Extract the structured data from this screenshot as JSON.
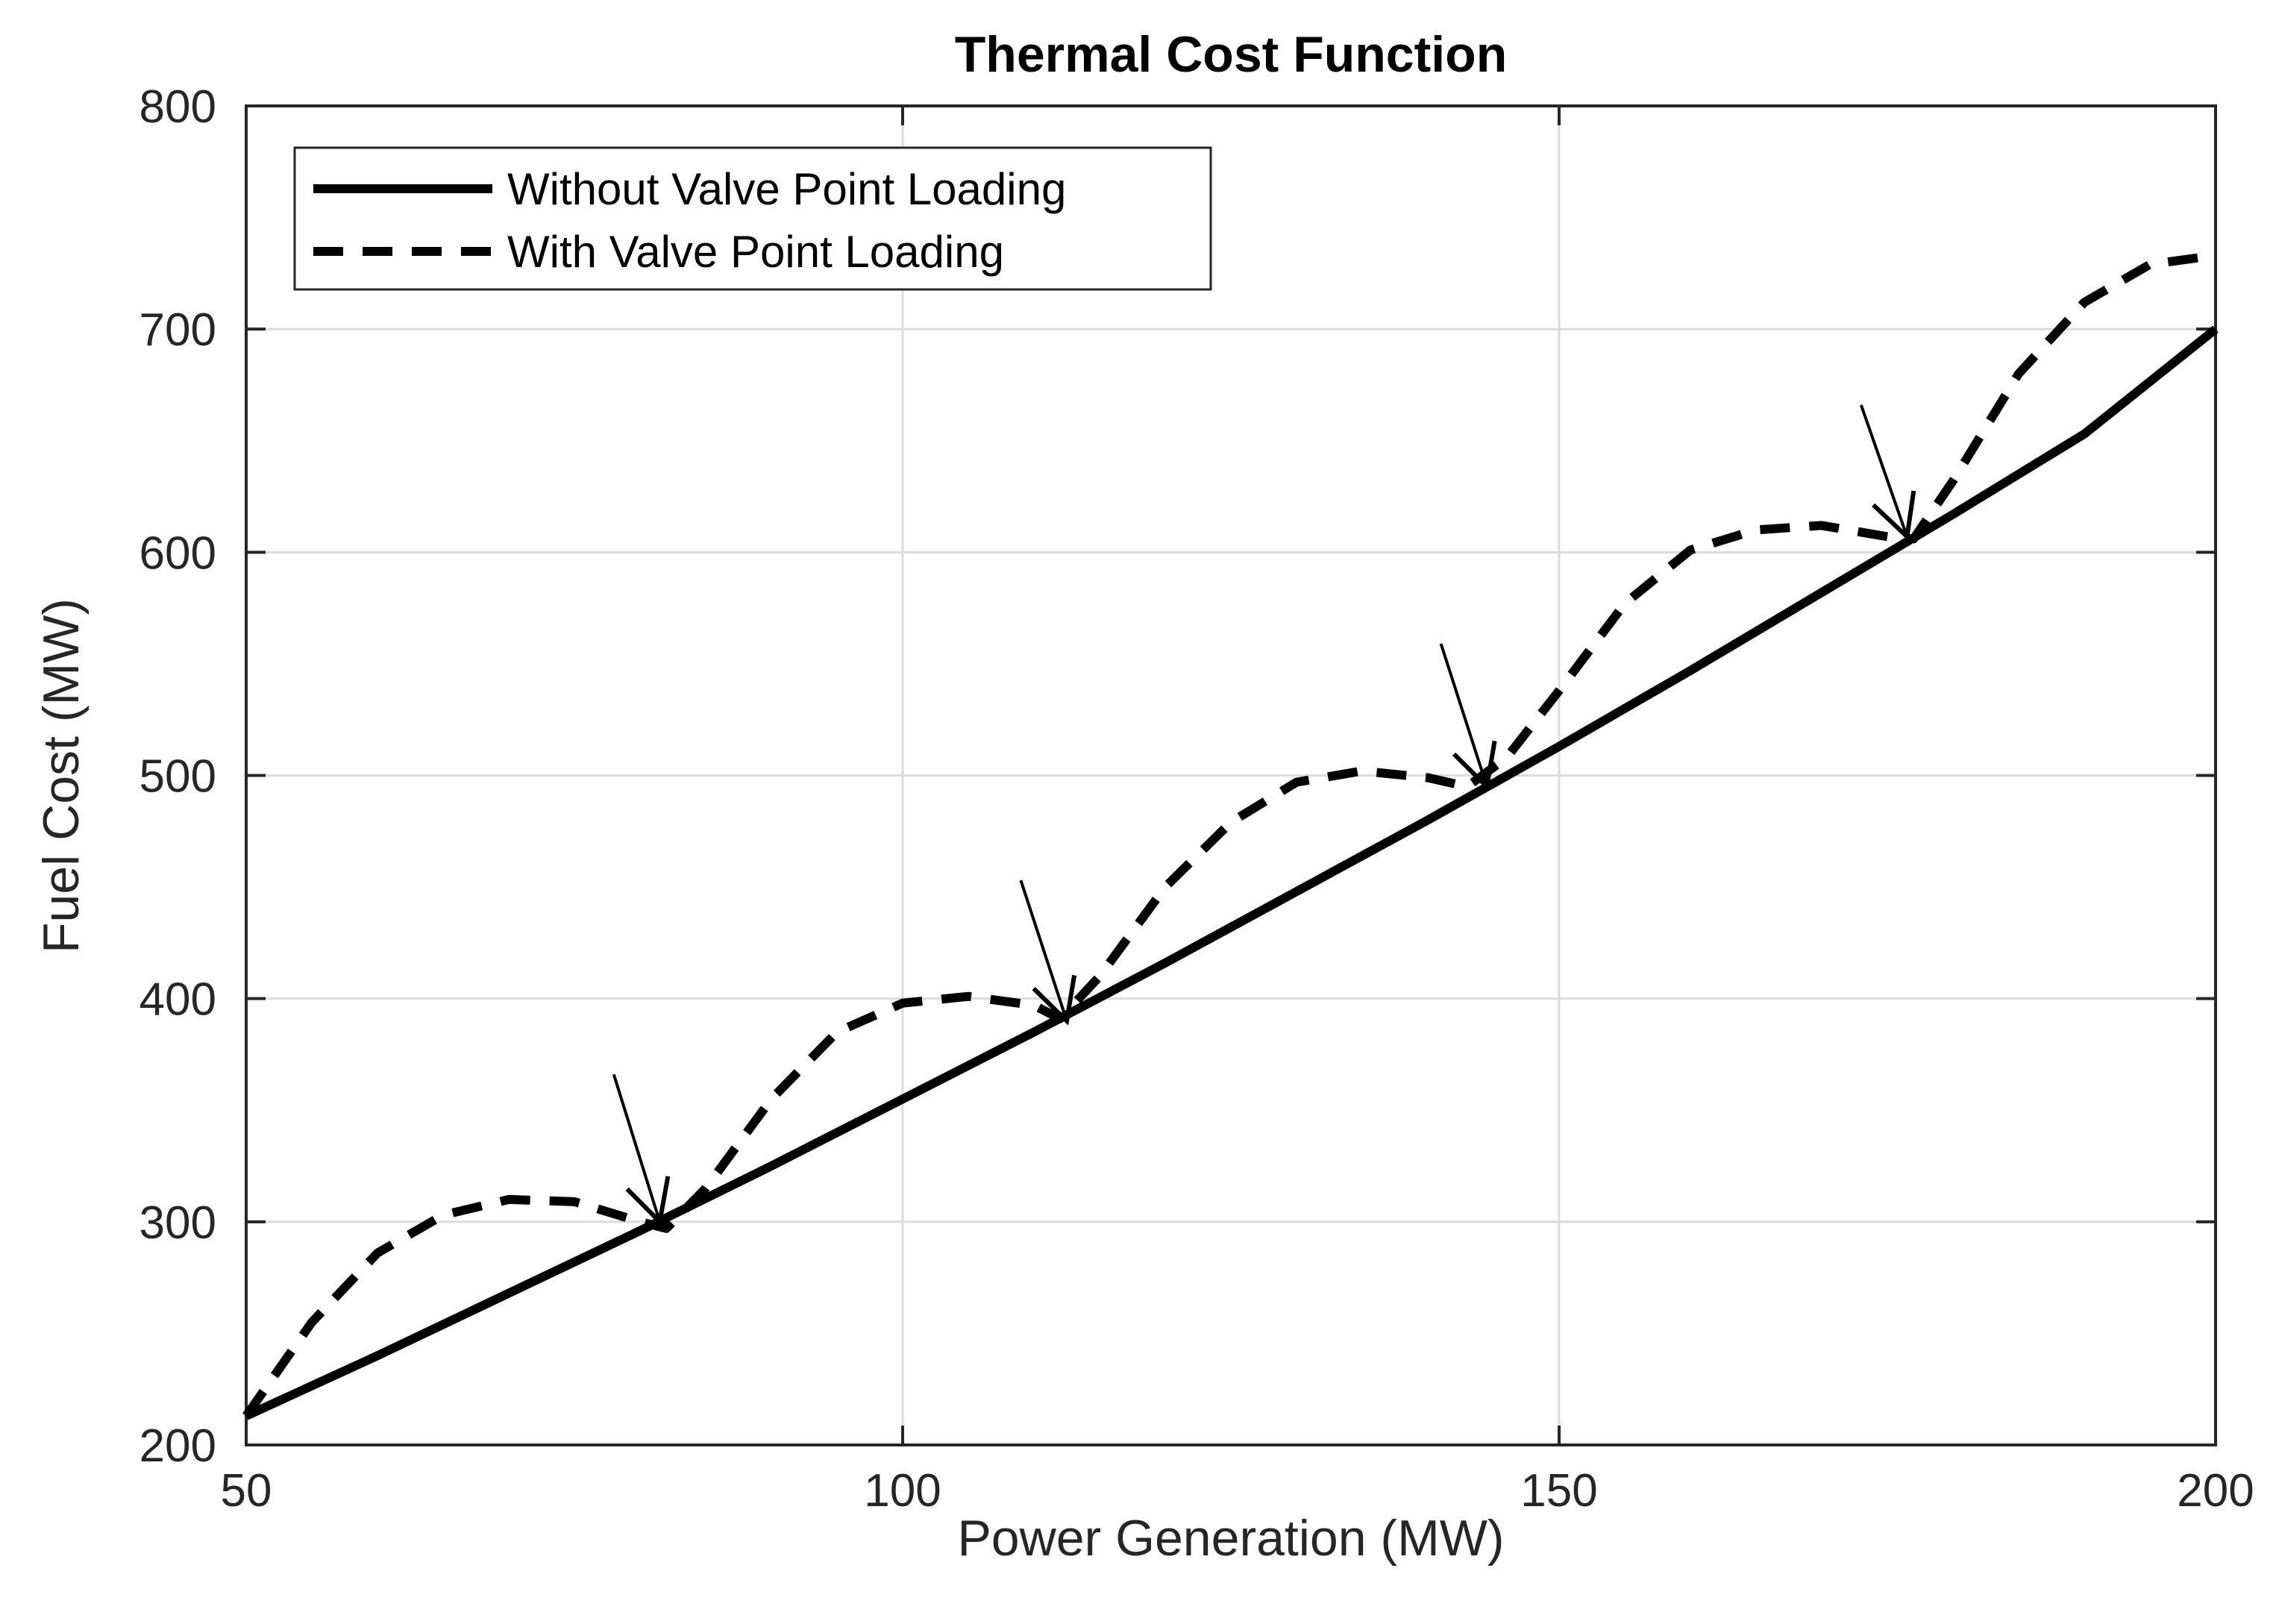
{
  "chart_data": {
    "type": "line",
    "title": "Thermal Cost Function",
    "xlabel": "Power Generation (MW)",
    "ylabel": "Fuel Cost (MW)",
    "xlim": [
      50,
      200
    ],
    "ylim": [
      200,
      800
    ],
    "xticks": [
      50,
      100,
      150,
      200
    ],
    "yticks": [
      200,
      300,
      400,
      500,
      600,
      700,
      800
    ],
    "xtick_labels": [
      "50",
      "100",
      "150",
      "200"
    ],
    "ytick_labels": [
      "200",
      "300",
      "400",
      "500",
      "600",
      "700",
      "800"
    ],
    "grid": true,
    "legend_position": "top-left",
    "series": [
      {
        "name": "Without Valve Point Loading",
        "style": "solid",
        "x": [
          50,
          60,
          70,
          80,
          90,
          100,
          110,
          120,
          130,
          140,
          150,
          160,
          170,
          180,
          190,
          200
        ],
        "y": [
          213,
          240,
          268,
          296,
          325,
          355,
          385,
          416,
          448,
          480,
          513,
          547,
          582,
          617,
          653,
          700
        ]
      },
      {
        "name": "With Valve Point Loading",
        "style": "dashed",
        "x": [
          50,
          55,
          60,
          65,
          70,
          75,
          80,
          82,
          85,
          90,
          95,
          100,
          105,
          110,
          112,
          115,
          120,
          125,
          130,
          135,
          140,
          143,
          146,
          150,
          155,
          160,
          165,
          170,
          175,
          177,
          180,
          185,
          190,
          195,
          200
        ],
        "y": [
          213,
          255,
          286,
          303,
          310,
          309,
          300,
          297,
          315,
          355,
          385,
          398,
          401,
          397,
          391,
          410,
          450,
          479,
          497,
          502,
          499,
          495,
          508,
          538,
          577,
          601,
          610,
          612,
          607,
          606,
          632,
          680,
          712,
          729,
          733
        ]
      }
    ],
    "annotations": [
      {
        "type": "arrow",
        "from": [
          78,
          366
        ],
        "to": [
          81.5,
          300
        ]
      },
      {
        "type": "arrow",
        "from": [
          109,
          453
        ],
        "to": [
          112.5,
          390
        ]
      },
      {
        "type": "arrow",
        "from": [
          141,
          559
        ],
        "to": [
          144.5,
          495
        ]
      },
      {
        "type": "arrow",
        "from": [
          173,
          666
        ],
        "to": [
          176.5,
          607
        ]
      }
    ],
    "colors": {
      "line": "#000000",
      "grid": "#dcdcdc",
      "axes": "#262626",
      "text": "#262626"
    }
  }
}
